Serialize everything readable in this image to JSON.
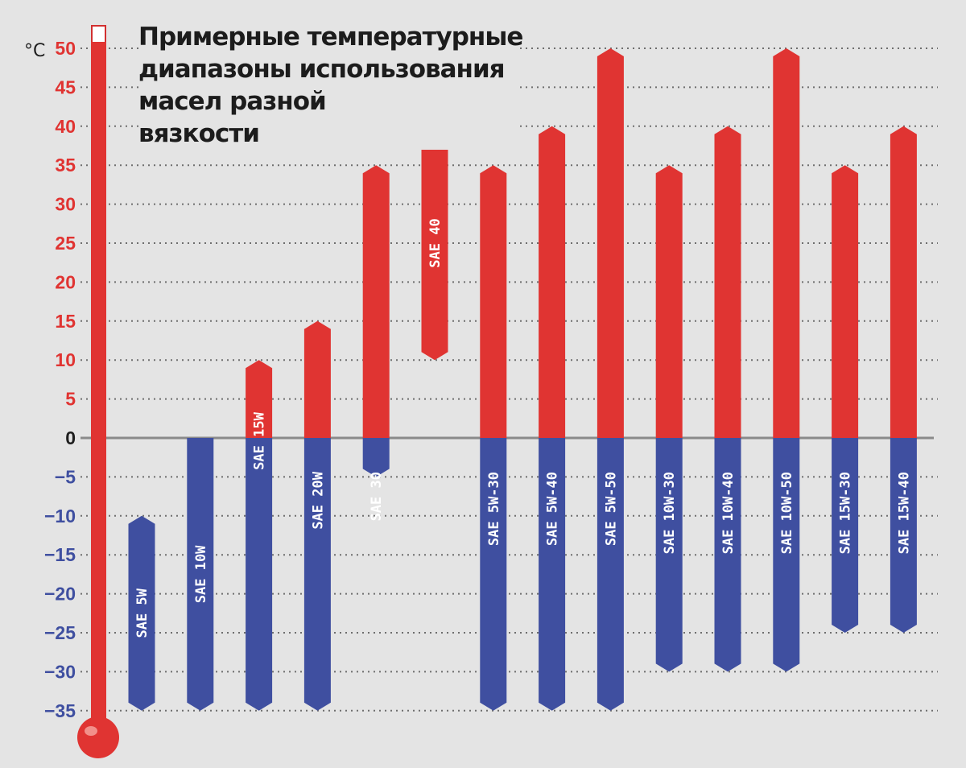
{
  "chart_data": {
    "type": "bar",
    "title_lines": [
      "Примерные температурные",
      "диапазоны использования",
      "масел разной",
      "вязкости"
    ],
    "unit": "°C",
    "ylim": [
      -35,
      50
    ],
    "yticks": [
      50,
      45,
      40,
      35,
      30,
      25,
      20,
      15,
      10,
      5,
      0,
      -5,
      -10,
      -15,
      -20,
      -25,
      -30,
      -35
    ],
    "grid": true,
    "colors": {
      "positive": "#e03432",
      "negative": "#3f4fa0",
      "zero_line": "#8a8a8a"
    },
    "bars": [
      {
        "label": "SAE 5W",
        "low": -35,
        "high": -10
      },
      {
        "label": "SAE 10W",
        "low": -35,
        "high": 0
      },
      {
        "label": "SAE 15W",
        "low": -35,
        "high": 10
      },
      {
        "label": "SAE 20W",
        "low": -35,
        "high": 15
      },
      {
        "label": "SAE 30",
        "low": -5,
        "high": 35
      },
      {
        "label": "SAE 40",
        "low": 10,
        "high": 40
      },
      {
        "label": "SAE 5W-30",
        "low": -35,
        "high": 35
      },
      {
        "label": "SAE 5W-40",
        "low": -35,
        "high": 40
      },
      {
        "label": "SAE 5W-50",
        "low": -35,
        "high": 50
      },
      {
        "label": "SAE 10W-30",
        "low": -30,
        "high": 35
      },
      {
        "label": "SAE 10W-40",
        "low": -30,
        "high": 40
      },
      {
        "label": "SAE 10W-50",
        "low": -30,
        "high": 50
      },
      {
        "label": "SAE 15W-30",
        "low": -25,
        "high": 35
      },
      {
        "label": "SAE 15W-40",
        "low": -25,
        "high": 40
      }
    ]
  }
}
